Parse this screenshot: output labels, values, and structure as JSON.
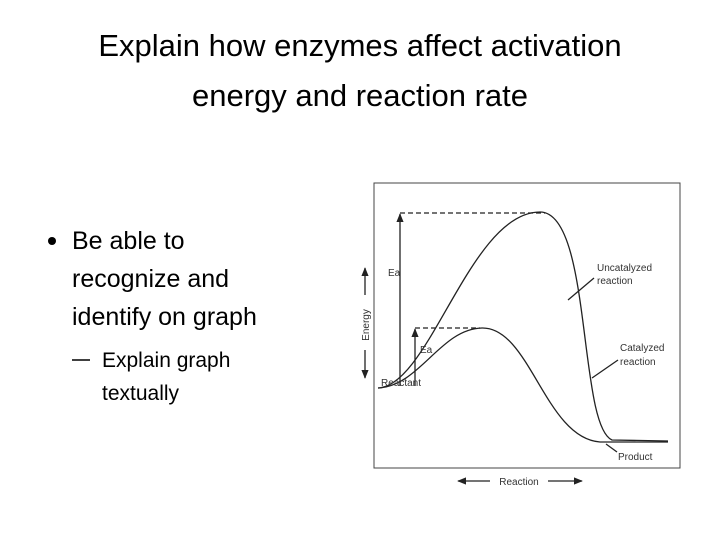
{
  "title": [
    "Explain how enzymes affect activation",
    "energy and reaction rate"
  ],
  "bullets": [
    {
      "text": [
        "Be able to",
        "recognize and",
        "identify on graph"
      ],
      "sub": [
        {
          "text": [
            "Explain graph",
            "textually"
          ]
        }
      ]
    }
  ],
  "diagram": {
    "y_axis": "Energy",
    "x_axis": "Reaction",
    "ea_uncatalyzed": "Ea",
    "ea_catalyzed": "Ea",
    "reactant": "Reactant",
    "product": "Product",
    "uncatalyzed": [
      "Uncatalyzed",
      "reaction"
    ],
    "catalyzed": [
      "Catalyzed",
      "reaction"
    ]
  }
}
